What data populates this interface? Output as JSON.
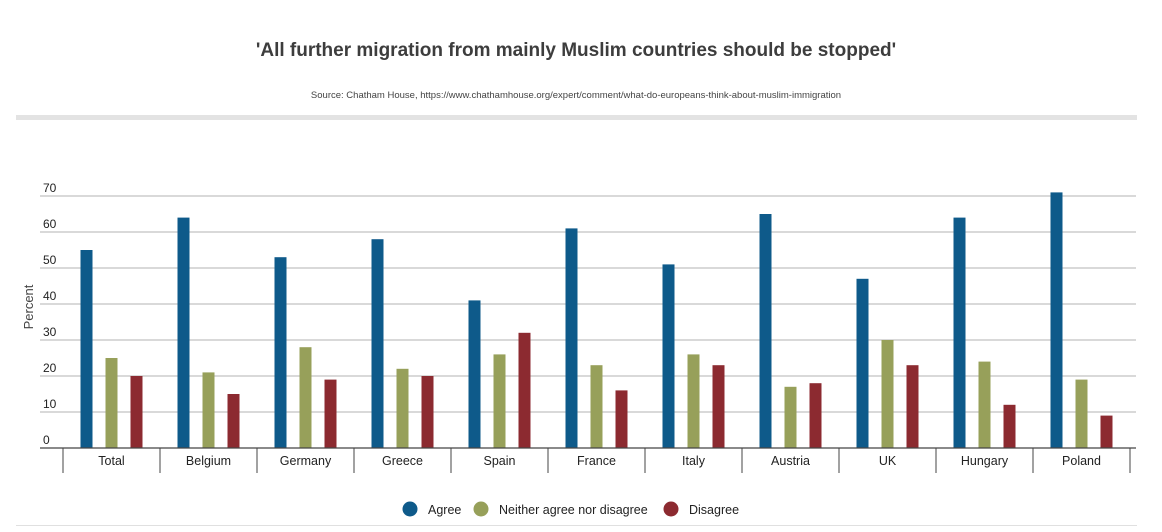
{
  "chart_data": {
    "type": "bar",
    "title": "'All further migration from mainly Muslim countries should be stopped'",
    "subtitle": "Source: Chatham House, https://www.chathamhouse.org/expert/comment/what-do-europeans-think-about-muslim-immigration",
    "xlabel": "",
    "ylabel": "Percent",
    "ylim": [
      0,
      70
    ],
    "yticks": [
      0,
      10,
      20,
      30,
      40,
      50,
      60,
      70
    ],
    "grid": true,
    "legend_position": "bottom-center",
    "categories": [
      "Total",
      "Belgium",
      "Germany",
      "Greece",
      "Spain",
      "France",
      "Italy",
      "Austria",
      "UK",
      "Hungary",
      "Poland"
    ],
    "series": [
      {
        "name": "Agree",
        "color": "#0e5a8a",
        "values": [
          55,
          64,
          53,
          58,
          41,
          61,
          51,
          65,
          47,
          64,
          71
        ]
      },
      {
        "name": "Neither agree nor disagree",
        "color": "#97a05a",
        "values": [
          25,
          21,
          28,
          22,
          26,
          23,
          26,
          17,
          30,
          24,
          19
        ]
      },
      {
        "name": "Disagree",
        "color": "#8c2a30",
        "values": [
          20,
          15,
          19,
          20,
          32,
          16,
          23,
          18,
          23,
          12,
          9
        ]
      }
    ]
  }
}
